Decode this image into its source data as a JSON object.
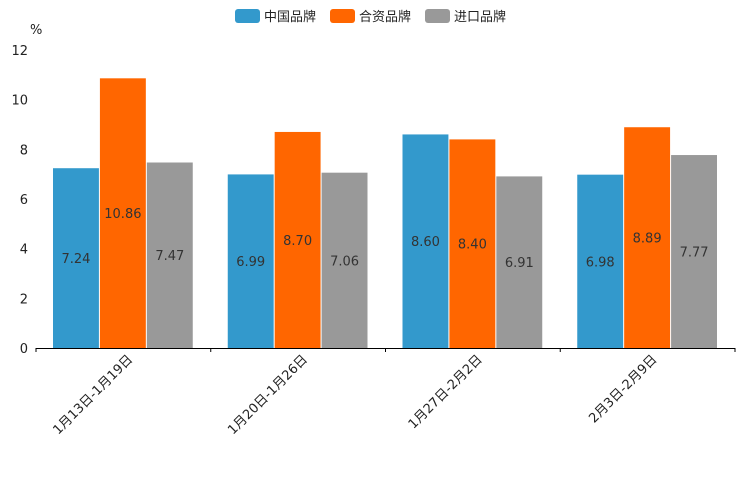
{
  "chart_data": {
    "type": "bar",
    "unit_label": "%",
    "categories": [
      "1月13日-1月19日",
      "1月20日-1月26日",
      "1月27日-2月2日",
      "2月3日-2月9日"
    ],
    "series": [
      {
        "name": "中国品牌",
        "color": "#3399cc",
        "values": [
          7.24,
          6.99,
          8.6,
          6.98
        ],
        "labels": [
          "7.24",
          "6.99",
          "8.60",
          "6.98"
        ]
      },
      {
        "name": "合资品牌",
        "color": "#ff6600",
        "values": [
          10.86,
          8.7,
          8.4,
          8.89
        ],
        "labels": [
          "10.86",
          "8.70",
          "8.40",
          "8.89"
        ]
      },
      {
        "name": "进口品牌",
        "color": "#999999",
        "values": [
          7.47,
          7.06,
          6.91,
          7.77
        ],
        "labels": [
          "7.47",
          "7.06",
          "6.91",
          "7.77"
        ]
      }
    ],
    "ylim": [
      0,
      12
    ],
    "yticks": [
      "0",
      "2",
      "4",
      "6",
      "8",
      "10",
      "12"
    ],
    "legend_position": "top-center",
    "grid": false
  }
}
